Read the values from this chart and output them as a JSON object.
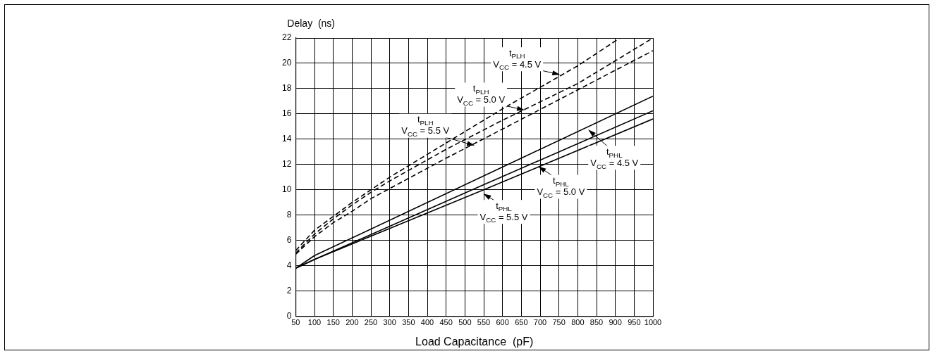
{
  "chart_data": {
    "type": "line",
    "xlabel": "Load Capacitance  (pF)",
    "ylabel": "Delay  (ns)",
    "xlim": [
      50,
      1000
    ],
    "xticks": [
      50,
      100,
      150,
      200,
      250,
      300,
      350,
      400,
      450,
      500,
      550,
      600,
      650,
      700,
      750,
      800,
      850,
      900,
      950,
      1000
    ],
    "ylim": [
      0,
      22
    ],
    "yticks": [
      0,
      2,
      4,
      6,
      8,
      10,
      12,
      14,
      16,
      18,
      20,
      22
    ],
    "grid": true,
    "legend": false,
    "marker": "none",
    "series": [
      {
        "color": "#000000",
        "line_style": "dashed",
        "x": [
          50,
          100,
          150,
          200,
          250,
          300,
          450,
          600,
          800,
          912
        ],
        "values": [
          5.2,
          6.8,
          7.9,
          9.0,
          10.0,
          11.0,
          13.7,
          16.4,
          19.8,
          22
        ]
      },
      {
        "color": "#000000",
        "line_style": "dashed",
        "x": [
          50,
          100,
          150,
          200,
          250,
          300,
          450,
          600,
          800,
          1000
        ],
        "values": [
          5.0,
          6.5,
          7.7,
          8.8,
          9.8,
          10.7,
          13.2,
          15.5,
          18.4,
          22
        ]
      },
      {
        "color": "#000000",
        "line_style": "dashed",
        "x": [
          50,
          100,
          150,
          200,
          250,
          300,
          450,
          600,
          800,
          1000
        ],
        "values": [
          4.9,
          6.3,
          7.4,
          8.3,
          9.3,
          10.1,
          12.5,
          14.8,
          17.9,
          21.0
        ]
      },
      {
        "color": "#000000",
        "line_style": "solid",
        "x": [
          50,
          100,
          550,
          1000
        ],
        "values": [
          3.8,
          4.8,
          11.1,
          17.4
        ]
      },
      {
        "color": "#000000",
        "line_style": "solid",
        "x": [
          50,
          100,
          550,
          1000
        ],
        "values": [
          3.8,
          4.5,
          10.4,
          16.25
        ]
      },
      {
        "color": "#000000",
        "line_style": "solid",
        "x": [
          50,
          100,
          550,
          1000
        ],
        "values": [
          3.8,
          4.5,
          10.0,
          15.6
        ]
      }
    ],
    "annotations": [
      "t$_{PLH}$",
      {
        "text": "V$_{CC}$ = 4.5 V",
        "x": 753,
        "y": 19.1
      },
      "t$_{PLH}$",
      {
        "text": "V$_{CC}$ = 5.0 V",
        "x": 659,
        "y": 16.3
      },
      "t$_{PLH}$",
      {
        "text": "V$_{CC}$ = 5.5 V",
        "x": 526,
        "y": 13.5
      },
      {
        "text": "t$_{PHL}$",
        "x": 828,
        "y": 14.75
      },
      "V$_{CC}$ = 4.5 V",
      {
        "text": "t$_{PHL}$",
        "x": 695,
        "y": 11.85
      },
      "V$_{CC}$ = 5.0 V",
      {
        "text": "t$_{PHL}$",
        "x": 549,
        "y": 9.7
      },
      "V$_{CC}$ = 5.5 V"
    ]
  }
}
